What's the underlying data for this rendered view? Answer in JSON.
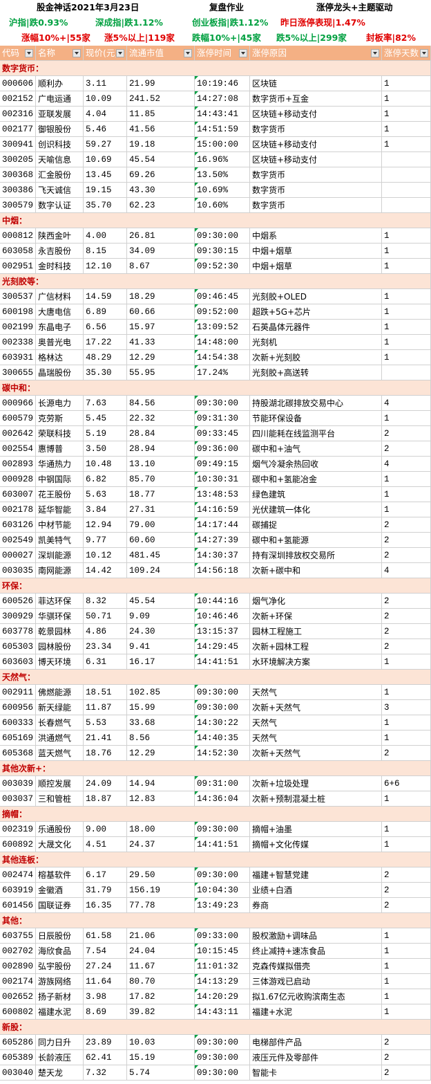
{
  "header": {
    "title": "股金神话2021年3月23日",
    "subtitle": "复盘作业",
    "theme": "涨停龙头+主题驱动"
  },
  "indices": [
    "沪指|跌0.93%",
    "深成指|跌1.12%",
    "创业板指|跌1.12%",
    "昨日涨停表现|1.47%"
  ],
  "stats": [
    "涨幅10%+|55家",
    "涨5%以上|119家",
    "跌幅10%+|45家",
    "跌5%以上|299家",
    "封板率|82%"
  ],
  "table": {
    "columns": [
      "代码",
      "名称",
      "现价(元)",
      "流通市值",
      "涨停时间",
      "涨停原因",
      "涨停天数"
    ],
    "sections": [
      {
        "title": "数字货币：",
        "rows": [
          [
            "000606",
            "顺利办",
            "3.11",
            "21.99",
            "10:19:46",
            "区块链",
            "1"
          ],
          [
            "002152",
            "广电运通",
            "10.09",
            "241.52",
            "14:27:08",
            "数字货币+互金",
            "1"
          ],
          [
            "002316",
            "亚联发展",
            "4.04",
            "11.85",
            "14:43:41",
            "区块链+移动支付",
            "1"
          ],
          [
            "002177",
            "御银股份",
            "5.46",
            "41.56",
            "14:51:59",
            "数字货币",
            "1"
          ],
          [
            "300941",
            "创识科技",
            "59.27",
            "19.18",
            "15:00:00",
            "区块链+移动支付",
            "1"
          ],
          [
            "300205",
            "天喻信息",
            "10.69",
            "45.54",
            "16.96%",
            "区块链+移动支付"
          ],
          [
            "300368",
            "汇金股份",
            "13.45",
            "69.26",
            "13.50%",
            "数字货币"
          ],
          [
            "300386",
            "飞天诚信",
            "19.15",
            "43.30",
            "10.69%",
            "数字货币"
          ],
          [
            "300579",
            "数字认证",
            "35.70",
            "62.23",
            "10.60%",
            "数字货币"
          ]
        ]
      },
      {
        "title": "中烟：",
        "rows": [
          [
            "000812",
            "陕西金叶",
            "4.00",
            "26.81",
            "09:30:00",
            "中烟系",
            "1"
          ],
          [
            "603058",
            "永吉股份",
            "8.15",
            "34.09",
            "09:30:15",
            "中烟+烟草",
            "1"
          ],
          [
            "002951",
            "金时科技",
            "12.10",
            "8.67",
            "09:52:30",
            "中烟+烟草",
            "1"
          ]
        ]
      },
      {
        "title": "光刻胶等：",
        "rows": [
          [
            "300537",
            "广信材料",
            "14.59",
            "18.29",
            "09:46:45",
            "光刻胶+OLED",
            "1"
          ],
          [
            "600198",
            "大唐电信",
            "6.89",
            "60.66",
            "09:52:00",
            "超跌+5G+芯片",
            "1"
          ],
          [
            "002199",
            "东晶电子",
            "6.56",
            "15.97",
            "13:09:52",
            "石英晶体元器件",
            "1"
          ],
          [
            "002338",
            "奥普光电",
            "17.22",
            "41.33",
            "14:48:00",
            "光刻机",
            "1"
          ],
          [
            "603931",
            "格林达",
            "48.29",
            "12.29",
            "14:54:38",
            "次新+光刻胶",
            "1"
          ],
          [
            "300655",
            "晶瑞股份",
            "35.30",
            "55.95",
            "17.24%",
            "光刻胶+高送转"
          ]
        ]
      },
      {
        "title": "碳中和：",
        "rows": [
          [
            "000966",
            "长源电力",
            "7.63",
            "84.56",
            "09:30:00",
            "持股湖北碳排放交易中心",
            "4"
          ],
          [
            "600579",
            "克劳斯",
            "5.45",
            "22.32",
            "09:31:30",
            "节能环保设备",
            "1"
          ],
          [
            "002642",
            "荣联科技",
            "5.19",
            "28.84",
            "09:33:45",
            "四川能耗在线监测平台",
            "2"
          ],
          [
            "002554",
            "惠博普",
            "3.50",
            "28.94",
            "09:36:00",
            "碳中和+油气",
            "2"
          ],
          [
            "002893",
            "华通热力",
            "10.48",
            "13.10",
            "09:49:15",
            "烟气冷凝余热回收",
            "4"
          ],
          [
            "000928",
            "中钢国际",
            "6.82",
            "85.70",
            "10:30:31",
            "碳中和+氢能冶金",
            "1"
          ],
          [
            "603007",
            "花王股份",
            "5.63",
            "18.77",
            "13:48:53",
            "绿色建筑",
            "1"
          ],
          [
            "002178",
            "延华智能",
            "3.84",
            "27.31",
            "14:16:59",
            "光伏建筑一体化",
            "1"
          ],
          [
            "603126",
            "中材节能",
            "12.94",
            "79.00",
            "14:17:44",
            "碳捕捉",
            "2"
          ],
          [
            "002549",
            "凯美特气",
            "9.77",
            "60.60",
            "14:27:39",
            "碳中和+氢能源",
            "2"
          ],
          [
            "000027",
            "深圳能源",
            "10.12",
            "481.45",
            "14:30:37",
            "持有深圳排放权交易所",
            "2"
          ],
          [
            "003035",
            "南网能源",
            "14.42",
            "109.24",
            "14:56:18",
            "次新+碳中和",
            "4"
          ]
        ]
      },
      {
        "title": "环保：",
        "rows": [
          [
            "600526",
            "菲达环保",
            "8.32",
            "45.54",
            "10:44:16",
            "烟气净化",
            "2"
          ],
          [
            "300929",
            "华骐环保",
            "50.71",
            "9.09",
            "10:46:46",
            "次新+环保",
            "2"
          ],
          [
            "603778",
            "乾景园林",
            "4.86",
            "24.30",
            "13:15:37",
            "园林工程施工",
            "2"
          ],
          [
            "605303",
            "园林股份",
            "23.34",
            "9.41",
            "14:29:45",
            "次新+园林工程",
            "2"
          ],
          [
            "603603",
            "博天环境",
            "6.31",
            "16.17",
            "14:41:51",
            "水环境解决方案",
            "1"
          ]
        ]
      },
      {
        "title": "天然气：",
        "rows": [
          [
            "002911",
            "佛燃能源",
            "18.51",
            "102.85",
            "09:30:00",
            "天然气",
            "1"
          ],
          [
            "600956",
            "新天绿能",
            "11.87",
            "15.99",
            "09:30:00",
            "次新+天然气",
            "3"
          ],
          [
            "600333",
            "长春燃气",
            "5.53",
            "33.68",
            "14:30:22",
            "天然气",
            "1"
          ],
          [
            "605169",
            "洪通燃气",
            "21.41",
            "8.56",
            "14:40:35",
            "天然气",
            "1"
          ],
          [
            "605368",
            "蓝天燃气",
            "18.76",
            "12.29",
            "14:52:30",
            "次新+天然气",
            "2"
          ]
        ]
      },
      {
        "title": "其他次新+：",
        "rows": [
          [
            "003039",
            "顺控发展",
            "24.09",
            "14.94",
            "09:31:00",
            "次新+垃圾处理",
            "6+6"
          ],
          [
            "003037",
            "三和管桩",
            "18.87",
            "12.83",
            "14:36:04",
            "次新+预制混凝土桩",
            "1"
          ]
        ]
      },
      {
        "title": "摘帽：",
        "rows": [
          [
            "002319",
            "乐通股份",
            "9.00",
            "18.00",
            "09:30:00",
            "摘帽+油墨",
            "1"
          ],
          [
            "600892",
            "大晟文化",
            "4.51",
            "24.37",
            "14:41:51",
            "摘帽+文化传媒",
            "1"
          ]
        ]
      },
      {
        "title": "其他连板：",
        "rows": [
          [
            "002474",
            "榕基软件",
            "6.17",
            "29.50",
            "09:30:00",
            "福建+智慧党建",
            "2"
          ],
          [
            "603919",
            "金徽酒",
            "31.79",
            "156.19",
            "10:04:30",
            "业绩+白酒",
            "2"
          ],
          [
            "601456",
            "国联证券",
            "16.35",
            "77.78",
            "13:49:23",
            "券商",
            "2"
          ]
        ]
      },
      {
        "title": "其他：",
        "rows": [
          [
            "603755",
            "日辰股份",
            "61.58",
            "21.06",
            "09:33:00",
            "股权激励+调味品",
            "1"
          ],
          [
            "002702",
            "海欣食品",
            "7.54",
            "24.04",
            "10:15:45",
            "终止减持+速冻食品",
            "1"
          ],
          [
            "002890",
            "弘宇股份",
            "27.24",
            "11.67",
            "11:01:32",
            "克森传媒拟借壳",
            "1"
          ],
          [
            "002174",
            "游族网络",
            "11.64",
            "80.70",
            "14:13:29",
            "三体游戏已启动",
            "1"
          ],
          [
            "002652",
            "扬子新材",
            "3.98",
            "17.82",
            "14:20:29",
            "拟1.67亿元收购滨南生态",
            "1"
          ],
          [
            "600802",
            "福建水泥",
            "8.69",
            "39.82",
            "14:43:11",
            "福建+水泥",
            "1"
          ]
        ]
      },
      {
        "title": "新股：",
        "rows": [
          [
            "605286",
            "同力日升",
            "23.89",
            "10.03",
            "09:30:00",
            "电梯部件产品",
            "2"
          ],
          [
            "605389",
            "长龄液压",
            "62.41",
            "15.19",
            "09:30:00",
            "液压元件及零部件",
            "2"
          ],
          [
            "003040",
            "楚天龙",
            "7.32",
            "5.74",
            "09:30:00",
            "智能卡",
            "2"
          ]
        ]
      }
    ]
  }
}
